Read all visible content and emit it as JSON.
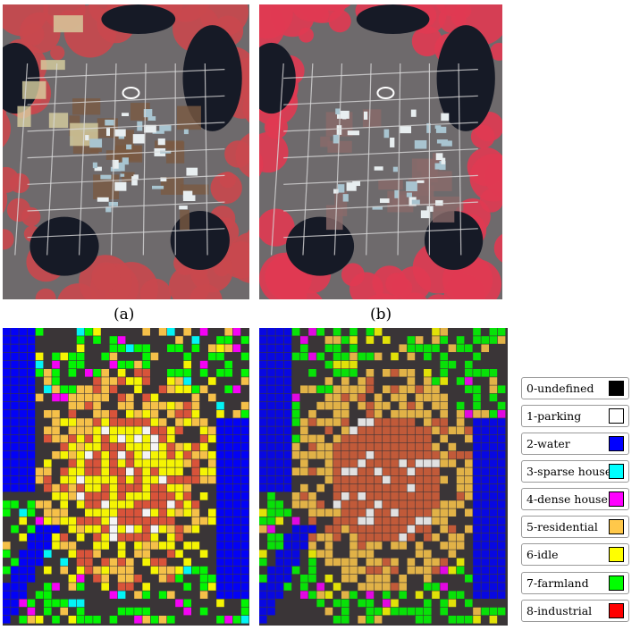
{
  "figure": {
    "caption_a": "(a)",
    "caption_b": "(b)"
  },
  "legend": [
    {
      "label": "0-undefined",
      "color": "#000000"
    },
    {
      "label": "1-parking",
      "color": "#ffffff"
    },
    {
      "label": "2-water",
      "color": "#0000ff"
    },
    {
      "label": "3-sparse house",
      "color": "#00ffff"
    },
    {
      "label": "4-dense house",
      "color": "#ff00ff"
    },
    {
      "label": "5-residential",
      "color": "#ffc84a"
    },
    {
      "label": "6-idle",
      "color": "#ffff00"
    },
    {
      "label": "7-farmland",
      "color": "#00ff00"
    },
    {
      "label": "8-industrial",
      "color": "#ff0000"
    }
  ],
  "colors": {
    "vegetation": "#c9484e",
    "urban": "#6e6a6c",
    "water": "#161a26",
    "road": "#d9d9d9",
    "soil": "#7a5a42",
    "bare": "#d8cfa0"
  }
}
